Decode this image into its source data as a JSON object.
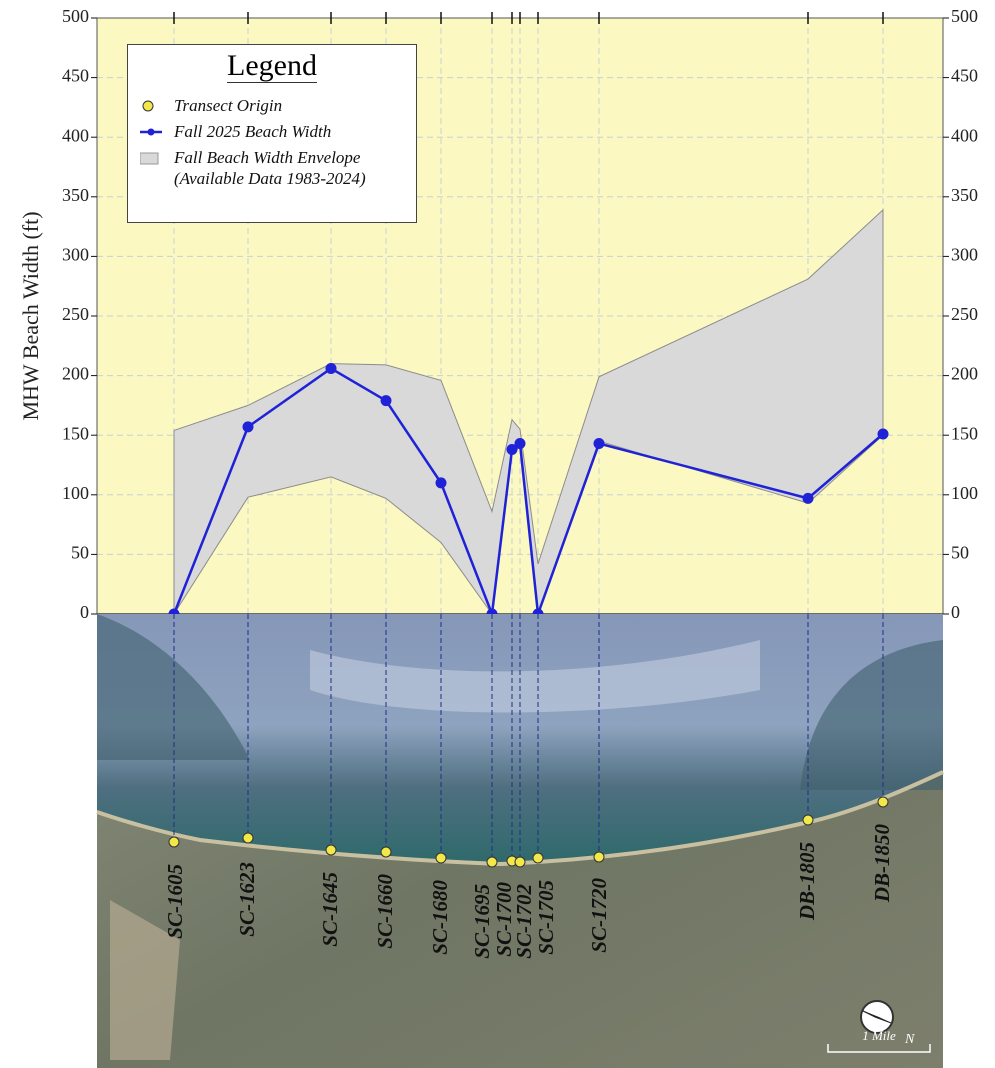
{
  "chart_data": {
    "type": "line",
    "y_label": "MHW Beach Width (ft)",
    "legend_title": "Legend",
    "categories": [
      "SC-1605",
      "SC-1623",
      "SC-1645",
      "SC-1660",
      "SC-1680",
      "SC-1695",
      "SC-1700",
      "SC-1702",
      "SC-1705",
      "SC-1720",
      "DB-1805",
      "DB-1850"
    ],
    "series": [
      {
        "name": "Fall 2025 Beach Width",
        "color": "#1f22d6",
        "values": [
          0,
          157,
          206,
          179,
          110,
          0,
          138,
          143,
          0,
          143,
          97,
          151
        ]
      }
    ],
    "envelope": {
      "name": "Fall Beach Width Envelope (Available Data 1983-2024)",
      "color": "#d9d9d9",
      "upper": [
        154,
        175,
        210,
        209,
        196,
        86,
        163,
        155,
        42,
        199,
        281,
        339
      ],
      "lower": [
        0,
        98,
        115,
        97,
        60,
        0,
        135,
        140,
        0,
        145,
        93,
        150
      ]
    },
    "origins": {
      "name": "Transect Origin",
      "color": "#f2e84a"
    },
    "ylim": [
      0,
      500
    ],
    "yticks": [
      0,
      50,
      100,
      150,
      200,
      250,
      300,
      350,
      400,
      450,
      500
    ],
    "y2lim": [
      0,
      500
    ],
    "y2ticks": [
      0,
      50,
      100,
      150,
      200,
      250,
      300,
      350,
      400,
      450,
      500
    ],
    "grid": true,
    "map": {
      "scale_label": "1 Mile",
      "north": "N"
    }
  }
}
